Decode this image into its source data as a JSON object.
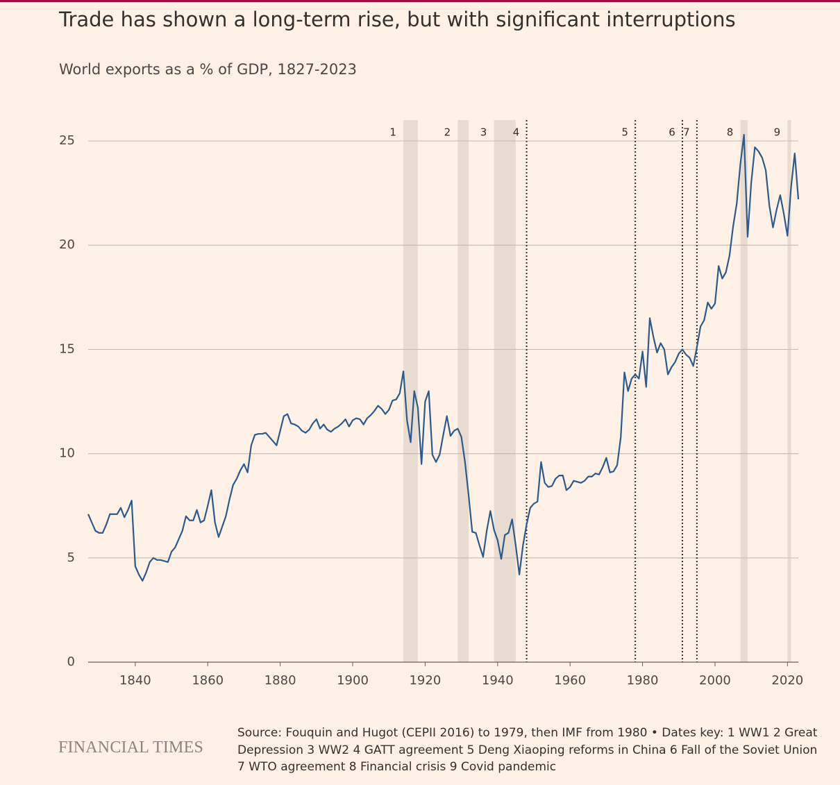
{
  "chart_data": {
    "type": "line",
    "title": "Trade has shown a long-term rise, but with significant interruptions",
    "subtitle": "World exports as a % of GDP, 1827-2023",
    "source": "Source: Fouquin and Hugot (CEPII 2016) to 1979, then IMF from 1980 • Dates key: 1 WW1 2 Great Depression 3 WW2 4 GATT agreement 5 Deng Xiaoping reforms in China 6 Fall of the Soviet Union 7 WTO agreement 8 Financial crisis 9 Covid pandemic",
    "brand": "FINANCIAL TIMES",
    "x": [
      1827,
      1828,
      1829,
      1830,
      1831,
      1832,
      1833,
      1834,
      1835,
      1836,
      1837,
      1838,
      1839,
      1840,
      1841,
      1842,
      1843,
      1844,
      1845,
      1846,
      1847,
      1848,
      1849,
      1850,
      1851,
      1852,
      1853,
      1854,
      1855,
      1856,
      1857,
      1858,
      1859,
      1860,
      1861,
      1862,
      1863,
      1864,
      1865,
      1866,
      1867,
      1868,
      1869,
      1870,
      1871,
      1872,
      1873,
      1874,
      1875,
      1876,
      1877,
      1878,
      1879,
      1880,
      1881,
      1882,
      1883,
      1884,
      1885,
      1886,
      1887,
      1888,
      1889,
      1890,
      1891,
      1892,
      1893,
      1894,
      1895,
      1896,
      1897,
      1898,
      1899,
      1900,
      1901,
      1902,
      1903,
      1904,
      1905,
      1906,
      1907,
      1908,
      1909,
      1910,
      1911,
      1912,
      1913,
      1914,
      1915,
      1916,
      1917,
      1918,
      1919,
      1920,
      1921,
      1922,
      1923,
      1924,
      1925,
      1926,
      1927,
      1928,
      1929,
      1930,
      1931,
      1932,
      1933,
      1934,
      1935,
      1936,
      1937,
      1938,
      1939,
      1940,
      1941,
      1942,
      1943,
      1944,
      1945,
      1946,
      1947,
      1948,
      1949,
      1950,
      1951,
      1952,
      1953,
      1954,
      1955,
      1956,
      1957,
      1958,
      1959,
      1960,
      1961,
      1962,
      1963,
      1964,
      1965,
      1966,
      1967,
      1968,
      1969,
      1970,
      1971,
      1972,
      1973,
      1974,
      1975,
      1976,
      1977,
      1978,
      1979,
      1980,
      1981,
      1982,
      1983,
      1984,
      1985,
      1986,
      1987,
      1988,
      1989,
      1990,
      1991,
      1992,
      1993,
      1994,
      1995,
      1996,
      1997,
      1998,
      1999,
      2000,
      2001,
      2002,
      2003,
      2004,
      2005,
      2006,
      2007,
      2008,
      2009,
      2010,
      2011,
      2012,
      2013,
      2014,
      2015,
      2016,
      2017,
      2018,
      2019,
      2020,
      2021,
      2022,
      2023
    ],
    "series": [
      {
        "color": "#2b5a8c",
        "values": [
          7.1,
          6.7,
          6.3,
          6.2,
          6.2,
          6.6,
          7.1,
          7.1,
          7.1,
          7.4,
          6.95,
          7.3,
          7.75,
          4.6,
          4.2,
          3.9,
          4.3,
          4.8,
          5.0,
          4.9,
          4.9,
          4.85,
          4.8,
          5.3,
          5.5,
          5.9,
          6.3,
          7.0,
          6.8,
          6.8,
          7.3,
          6.7,
          6.8,
          7.5,
          8.25,
          6.7,
          6.0,
          6.5,
          7.0,
          7.8,
          8.5,
          8.8,
          9.2,
          9.5,
          9.1,
          10.4,
          10.9,
          10.95,
          10.95,
          11.0,
          10.8,
          10.6,
          10.4,
          11.1,
          11.8,
          11.9,
          11.45,
          11.4,
          11.3,
          11.1,
          11.0,
          11.15,
          11.45,
          11.65,
          11.2,
          11.4,
          11.15,
          11.05,
          11.2,
          11.3,
          11.45,
          11.65,
          11.3,
          11.6,
          11.7,
          11.65,
          11.4,
          11.7,
          11.85,
          12.05,
          12.3,
          12.15,
          11.9,
          12.1,
          12.55,
          12.6,
          12.9,
          13.95,
          11.6,
          10.55,
          13.0,
          12.2,
          9.5,
          12.5,
          13.0,
          9.95,
          9.6,
          9.95,
          10.9,
          11.8,
          10.85,
          11.1,
          11.2,
          10.8,
          9.6,
          8.0,
          6.25,
          6.2,
          5.6,
          5.05,
          6.3,
          7.25,
          6.35,
          5.85,
          4.95,
          6.1,
          6.2,
          6.85,
          5.6,
          4.2,
          5.6,
          6.6,
          7.4,
          7.6,
          7.7,
          9.6,
          8.6,
          8.4,
          8.45,
          8.8,
          8.95,
          8.95,
          8.25,
          8.4,
          8.7,
          8.65,
          8.6,
          8.7,
          8.9,
          8.9,
          9.05,
          9.0,
          9.35,
          9.8,
          9.1,
          9.15,
          9.45,
          10.8,
          13.9,
          13.0,
          13.6,
          13.8,
          13.6,
          14.9,
          13.2,
          16.5,
          15.6,
          14.85,
          15.3,
          15.0,
          13.8,
          14.15,
          14.4,
          14.8,
          15.0,
          14.75,
          14.6,
          14.2,
          15.1,
          16.1,
          16.4,
          17.25,
          16.95,
          17.2,
          19.0,
          18.4,
          18.7,
          19.5,
          20.9,
          22.0,
          23.9,
          25.3,
          20.4,
          23.0,
          24.7,
          24.5,
          24.2,
          23.6,
          21.9,
          20.85,
          21.7,
          22.4,
          21.5,
          20.45,
          22.8,
          24.4,
          22.2
        ]
      }
    ],
    "xlim": [
      1827,
      2023
    ],
    "xticks": [
      1840,
      1860,
      1880,
      1900,
      1920,
      1940,
      1960,
      1980,
      2000,
      2020
    ],
    "ylim": [
      0,
      26
    ],
    "yticks": [
      0,
      5,
      10,
      15,
      20,
      25
    ],
    "grid": true,
    "bands": [
      {
        "start": 1914,
        "end": 1918,
        "label": "1"
      },
      {
        "start": 1929,
        "end": 1932,
        "label": "2"
      },
      {
        "start": 1939,
        "end": 1945,
        "label": "3"
      },
      {
        "start": 2007,
        "end": 2009,
        "label": "8"
      },
      {
        "start": 2020,
        "end": 2021,
        "label": "9"
      }
    ],
    "lines": [
      {
        "x": 1948,
        "label": "4"
      },
      {
        "x": 1978,
        "label": "5"
      },
      {
        "x": 1991,
        "label": "6"
      },
      {
        "x": 1995,
        "label": "7"
      }
    ]
  }
}
